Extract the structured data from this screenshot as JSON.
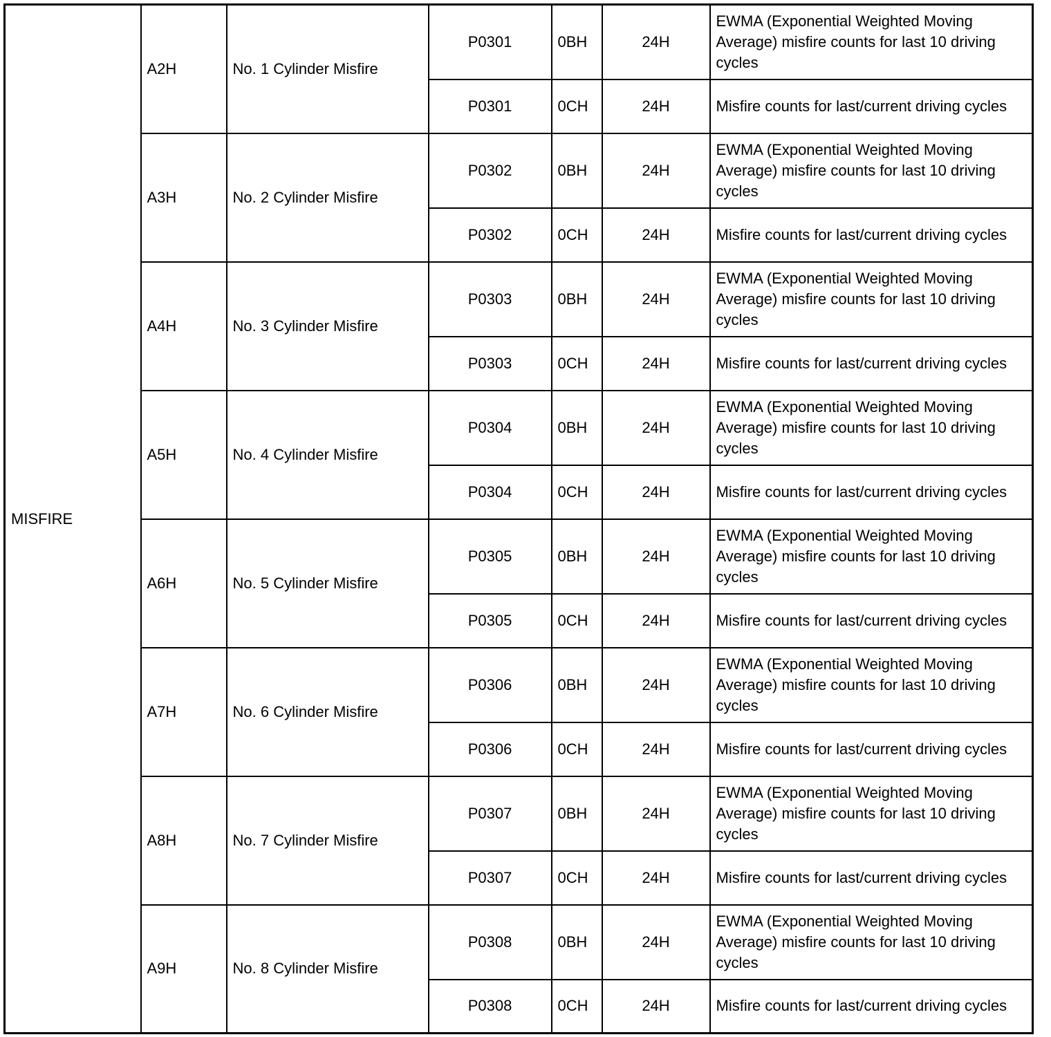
{
  "category": "MISFIRE",
  "groups": [
    {
      "id": "A2H",
      "name": "No. 1 Cylinder Misfire",
      "rows": [
        {
          "dtc": "P0301",
          "code": "0BH",
          "unit": "24H",
          "desc": "EWMA (Exponential Weighted Moving Average) misfire counts for last 10 driving cycles"
        },
        {
          "dtc": "P0301",
          "code": "0CH",
          "unit": "24H",
          "desc": "Misfire counts for last/current driving cycles"
        }
      ]
    },
    {
      "id": "A3H",
      "name": "No. 2 Cylinder Misfire",
      "rows": [
        {
          "dtc": "P0302",
          "code": "0BH",
          "unit": "24H",
          "desc": "EWMA (Exponential Weighted Moving Average) misfire counts for last 10 driving cycles"
        },
        {
          "dtc": "P0302",
          "code": "0CH",
          "unit": "24H",
          "desc": "Misfire counts for last/current driving cycles"
        }
      ]
    },
    {
      "id": "A4H",
      "name": "No. 3 Cylinder Misfire",
      "rows": [
        {
          "dtc": "P0303",
          "code": "0BH",
          "unit": "24H",
          "desc": "EWMA (Exponential Weighted Moving Average) misfire counts for last 10 driving cycles"
        },
        {
          "dtc": "P0303",
          "code": "0CH",
          "unit": "24H",
          "desc": "Misfire counts for last/current driving cycles"
        }
      ]
    },
    {
      "id": "A5H",
      "name": "No. 4 Cylinder Misfire",
      "rows": [
        {
          "dtc": "P0304",
          "code": "0BH",
          "unit": "24H",
          "desc": "EWMA (Exponential Weighted Moving Average) misfire counts for last 10 driving cycles"
        },
        {
          "dtc": "P0304",
          "code": "0CH",
          "unit": "24H",
          "desc": "Misfire counts for last/current driving cycles"
        }
      ]
    },
    {
      "id": "A6H",
      "name": "No. 5 Cylinder Misfire",
      "rows": [
        {
          "dtc": "P0305",
          "code": "0BH",
          "unit": "24H",
          "desc": "EWMA (Exponential Weighted Moving Average) misfire counts for last 10 driving cycles"
        },
        {
          "dtc": "P0305",
          "code": "0CH",
          "unit": "24H",
          "desc": "Misfire counts for last/current driving cycles"
        }
      ]
    },
    {
      "id": "A7H",
      "name": "No. 6 Cylinder Misfire",
      "rows": [
        {
          "dtc": "P0306",
          "code": "0BH",
          "unit": "24H",
          "desc": "EWMA (Exponential Weighted Moving Average) misfire counts for last 10 driving cycles"
        },
        {
          "dtc": "P0306",
          "code": "0CH",
          "unit": "24H",
          "desc": "Misfire counts for last/current driving cycles"
        }
      ]
    },
    {
      "id": "A8H",
      "name": "No. 7 Cylinder Misfire",
      "rows": [
        {
          "dtc": "P0307",
          "code": "0BH",
          "unit": "24H",
          "desc": "EWMA (Exponential Weighted Moving Average) misfire counts for last 10 driving cycles"
        },
        {
          "dtc": "P0307",
          "code": "0CH",
          "unit": "24H",
          "desc": "Misfire counts for last/current driving cycles"
        }
      ]
    },
    {
      "id": "A9H",
      "name": "No. 8 Cylinder Misfire",
      "rows": [
        {
          "dtc": "P0308",
          "code": "0BH",
          "unit": "24H",
          "desc": "EWMA (Exponential Weighted Moving Average) misfire counts for last 10 driving cycles"
        },
        {
          "dtc": "P0308",
          "code": "0CH",
          "unit": "24H",
          "desc": "Misfire counts for last/current driving cycles"
        }
      ]
    }
  ]
}
